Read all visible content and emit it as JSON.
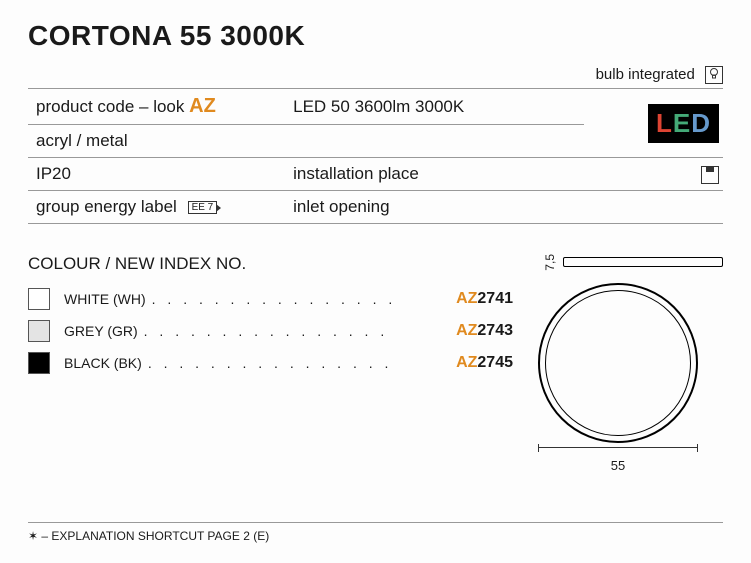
{
  "title": "CORTONA 55 3000K",
  "bulb_integrated": "bulb integrated",
  "spec": {
    "product_code_label": "product code – look",
    "product_code_prefix": "AZ",
    "lamp": "LED 50 3600lm 3000K",
    "material": "acryl / metal",
    "ip": "IP20",
    "installation_label": "installation place",
    "energy_label": "group energy label",
    "ee_text": "EE 7",
    "inlet": "inlet opening",
    "led_badge": {
      "l1": "L",
      "l2": "E",
      "l3": "D"
    }
  },
  "colour": {
    "heading": "COLOUR / NEW INDEX NO.",
    "items": [
      {
        "swatch": "white",
        "name": "WHITE (WH)",
        "prefix": "AZ",
        "num": "2741"
      },
      {
        "swatch": "grey",
        "name": "GREY (GR)",
        "prefix": "AZ",
        "num": "2743"
      },
      {
        "swatch": "black",
        "name": "BLACK (BK)",
        "prefix": "AZ",
        "num": "2745"
      }
    ]
  },
  "diagram": {
    "height": "7,5",
    "width": "55"
  },
  "footer": "✶  –  EXPLANATION SHORTCUT PAGE 2 (E)"
}
